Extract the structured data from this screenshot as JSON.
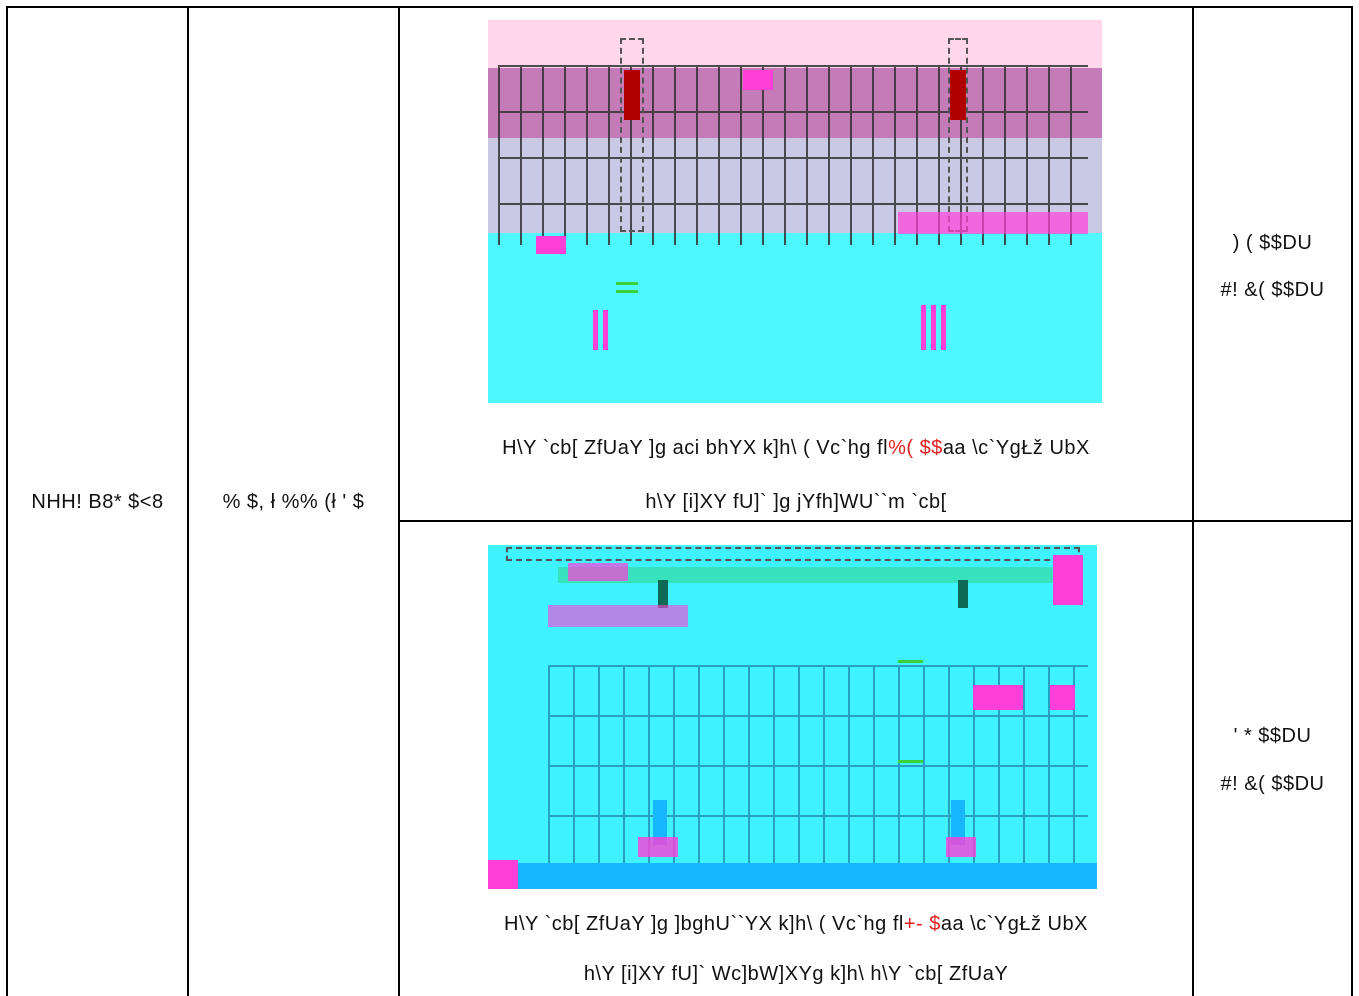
{
  "col1": {
    "text": "NHH! B8* $<8"
  },
  "col2": {
    "text": "% $, ł %% (ł ' $"
  },
  "row1": {
    "caption_line1_pre": "H\\Y `cb[  ZfUaY ]g aci bhYX k]h\\ (  Vc`hg fl",
    "caption_line1_red": "%( $$",
    "caption_line1_post": "aa  \\c`YgŁž UbX",
    "caption_line2": "h\\Y [i]XY fU]`  ]g jYfh]WU``m `cb[",
    "right_line1": ") ( $$DU",
    "right_line2": "#! &( $$DU"
  },
  "row2": {
    "caption_line1_pre": "H\\Y `cb[  ZfUaY ]g ]bghU``YX k]h\\ (  Vc`hg fl",
    "caption_line1_red": "+- $",
    "caption_line1_post": "aa  \\c`YgŁž UbX",
    "caption_line2": "h\\Y [i]XY fU]`  Wc]bW]XYg k]h\\ h\\Y `cb[  ZfUaY",
    "right_line1": "' * $$DU",
    "right_line2": "#! &( $$DU"
  }
}
